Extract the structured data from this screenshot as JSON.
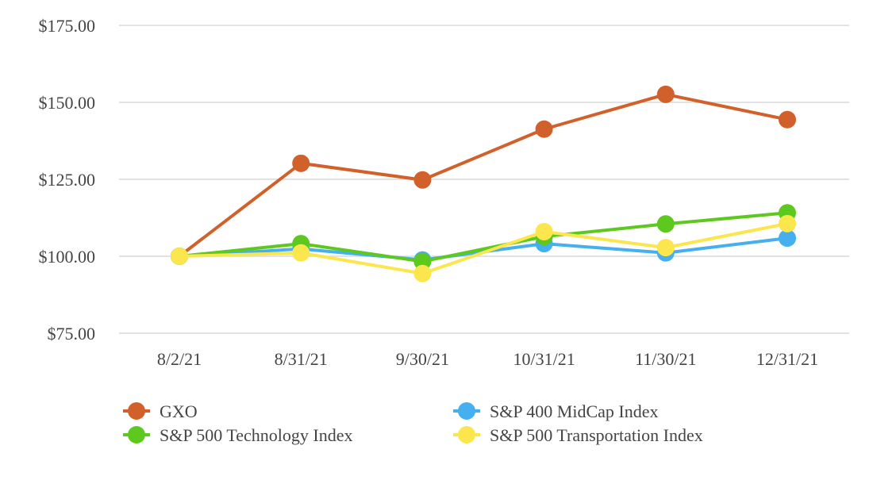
{
  "chart_data": {
    "type": "line",
    "title": "",
    "xlabel": "",
    "ylabel": "",
    "categories": [
      "8/2/21",
      "8/31/21",
      "9/30/21",
      "10/31/21",
      "11/30/21",
      "12/31/21"
    ],
    "ylim": [
      75,
      175
    ],
    "yticks": [
      75,
      100,
      125,
      150,
      175
    ],
    "ytick_labels": [
      "$75.00",
      "$100.00",
      "$125.00",
      "$150.00",
      "$175.00"
    ],
    "grid": "horizontal",
    "legend_position": "bottom",
    "series": [
      {
        "name": "GXO",
        "color": "#D2602A",
        "values": [
          100.0,
          130.2,
          124.8,
          141.3,
          152.6,
          144.4
        ]
      },
      {
        "name": "S&P 400 MidCap Index",
        "color": "#45AFEF",
        "values": [
          100.0,
          102.4,
          98.8,
          104.1,
          101.1,
          105.9
        ]
      },
      {
        "name": "S&P 500 Technology Index",
        "color": "#5DC91E",
        "values": [
          100.0,
          104.1,
          98.3,
          106.4,
          110.5,
          114.1
        ]
      },
      {
        "name": "S&P 500 Transportation Index",
        "color": "#FCE64E",
        "values": [
          100.0,
          101.1,
          94.4,
          108.0,
          102.8,
          110.6
        ]
      }
    ],
    "draw_order": [
      0,
      1,
      2,
      3
    ]
  }
}
